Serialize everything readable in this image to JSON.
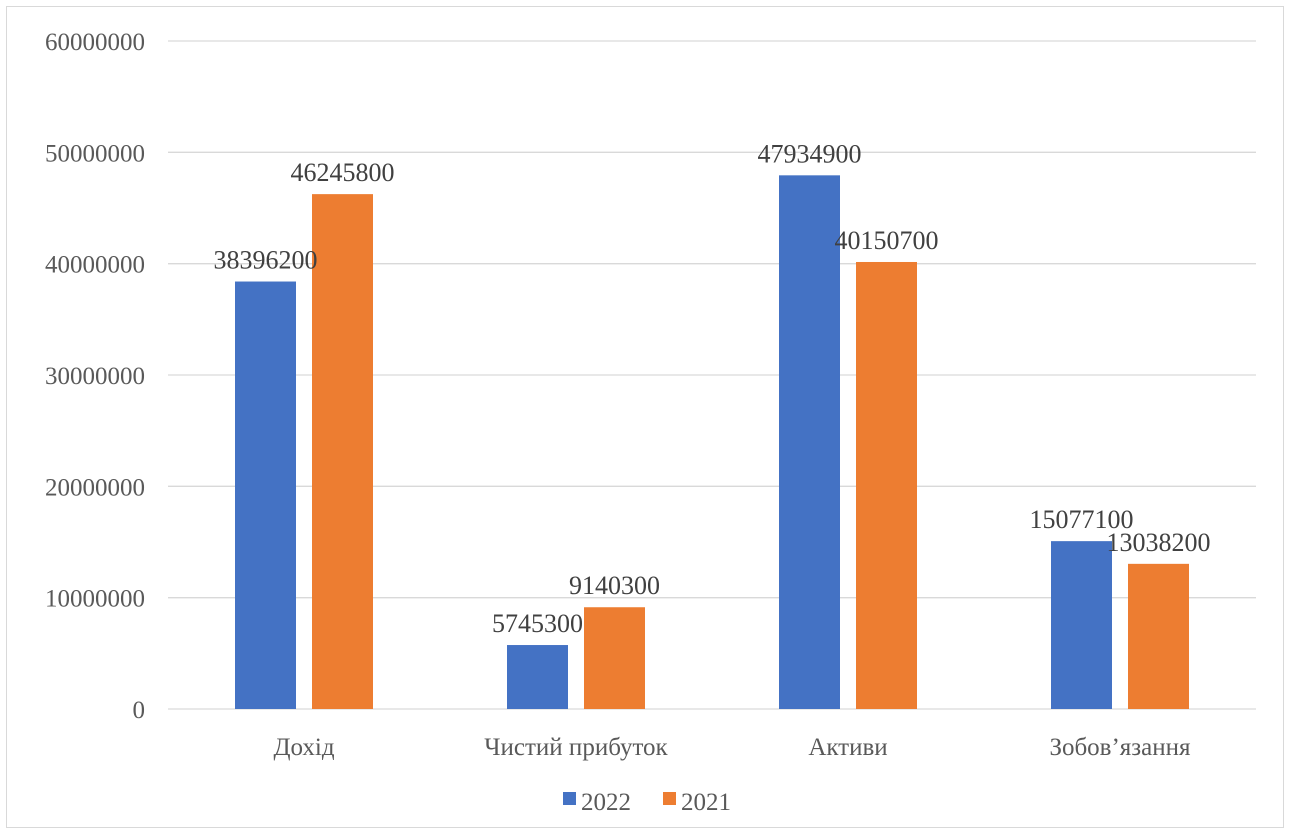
{
  "chart_data": {
    "type": "bar",
    "categories": [
      "Дохід",
      "Чистий прибуток",
      "Активи",
      "Зобов’язання"
    ],
    "series": [
      {
        "name": "2022",
        "values": [
          38396200,
          5745300,
          47934900,
          15077100
        ],
        "color": "#4472c4"
      },
      {
        "name": "2021",
        "values": [
          46245800,
          9140300,
          40150700,
          13038200
        ],
        "color": "#ed7d31"
      }
    ],
    "ylim": [
      0,
      60000000
    ],
    "yticks": [
      "0",
      "10000000",
      "20000000",
      "30000000",
      "40000000",
      "50000000",
      "60000000"
    ],
    "grid": true,
    "legend_position": "bottom"
  }
}
